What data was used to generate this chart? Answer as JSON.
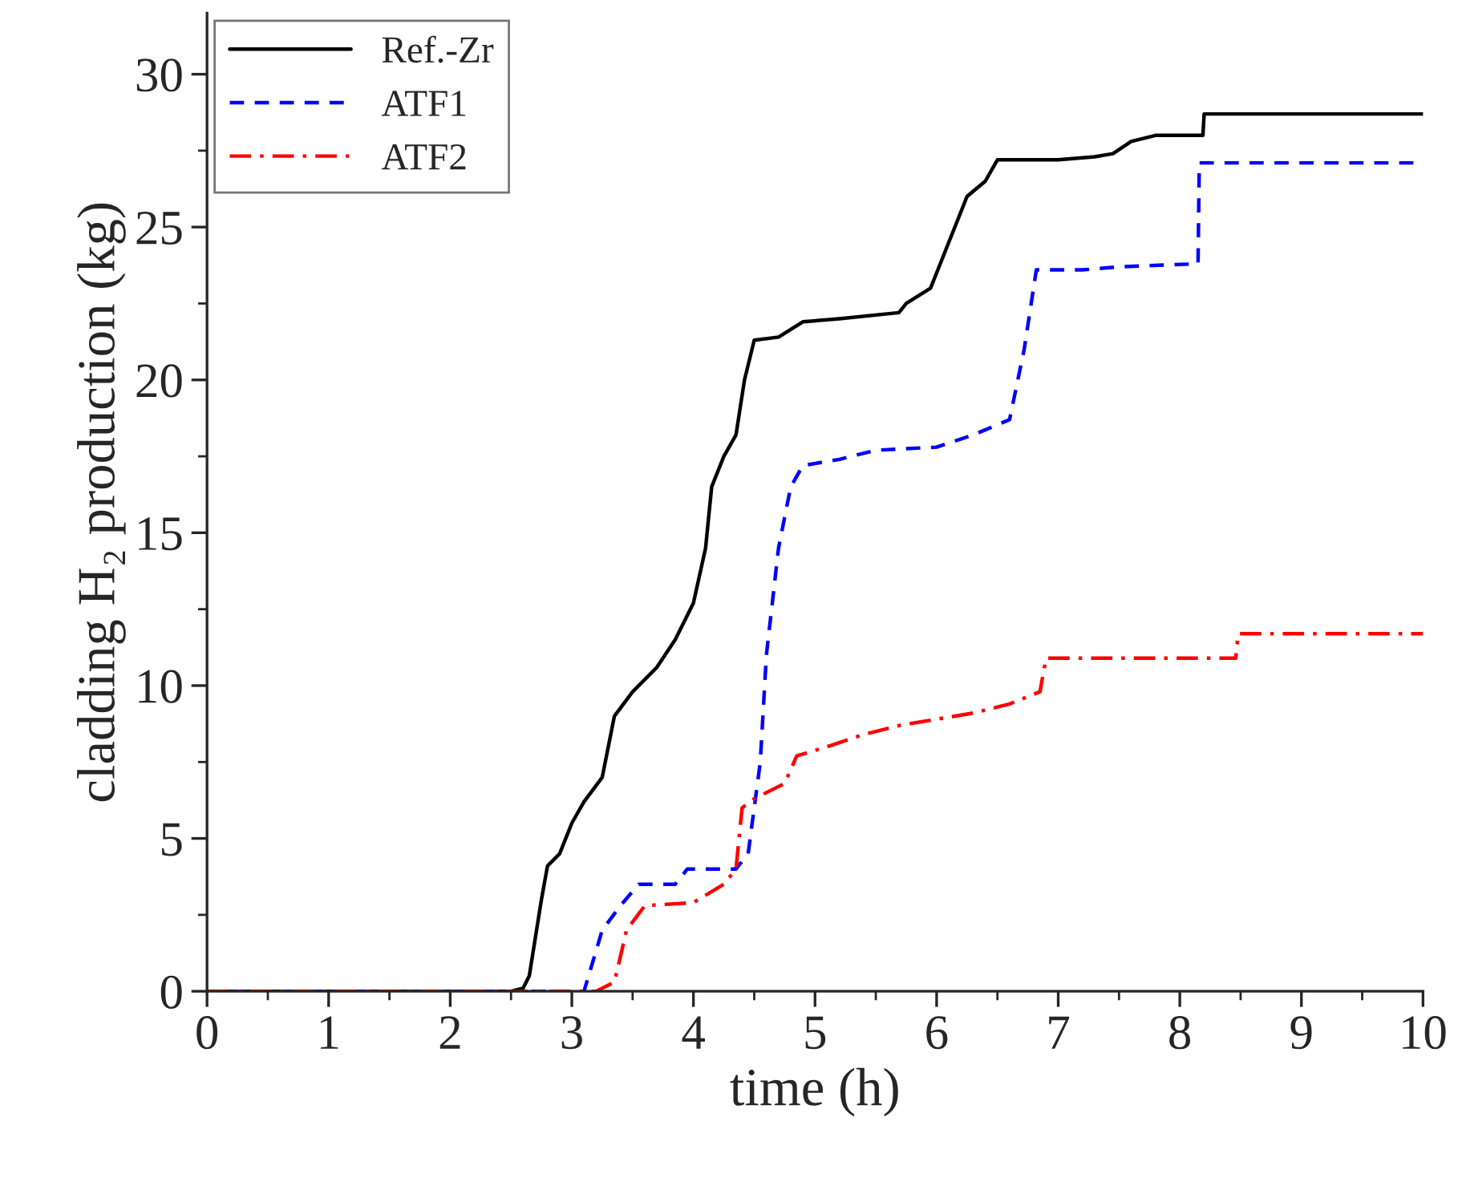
{
  "chart_data": {
    "type": "line",
    "xlabel": "time (h)",
    "ylabel": "cladding H₂ production (kg)",
    "xlim": [
      0,
      10
    ],
    "xticks": [
      0,
      1,
      2,
      3,
      4,
      5,
      6,
      7,
      8,
      9,
      10
    ],
    "ylim": [
      0,
      32
    ],
    "yticks": [
      0,
      5,
      10,
      15,
      20,
      25,
      30
    ],
    "grid": false,
    "legend": "top left",
    "series": [
      {
        "name": "Ref.-Zr",
        "color": "#000000",
        "line_style": "solid",
        "x": [
          0,
          2.5,
          2.6,
          2.65,
          2.75,
          2.8,
          2.9,
          3.0,
          3.1,
          3.25,
          3.3,
          3.35,
          3.5,
          3.7,
          3.85,
          4.0,
          4.1,
          4.15,
          4.25,
          4.35,
          4.42,
          4.5,
          4.7,
          4.9,
          5.2,
          5.69,
          5.75,
          5.95,
          6.1,
          6.25,
          6.4,
          6.5,
          7.0,
          7.3,
          7.45,
          7.6,
          7.8,
          8.19,
          8.2,
          10
        ],
        "values": [
          0,
          0,
          0.1,
          0.5,
          3,
          4.1,
          4.5,
          5.5,
          6.2,
          7,
          8,
          9,
          9.8,
          10.6,
          11.5,
          12.7,
          14.5,
          16.5,
          17.5,
          18.2,
          20,
          21.3,
          21.4,
          21.9,
          22,
          22.2,
          22.5,
          23,
          24.5,
          26,
          26.5,
          27.2,
          27.2,
          27.3,
          27.4,
          27.8,
          28,
          28,
          28.7,
          28.7
        ]
      },
      {
        "name": "ATF1",
        "color": "#0000ff",
        "line_style": "dashed",
        "x": [
          0,
          3.1,
          3.25,
          3.4,
          3.55,
          3.85,
          3.95,
          4.35,
          4.45,
          4.55,
          4.6,
          4.7,
          4.8,
          4.9,
          5.2,
          5.5,
          6.0,
          6.3,
          6.6,
          6.72,
          6.82,
          7.2,
          7.5,
          8.15,
          8.16,
          10
        ],
        "values": [
          0,
          0,
          2,
          2.8,
          3.5,
          3.5,
          4,
          4,
          4.5,
          7.5,
          11,
          14.5,
          16.5,
          17.2,
          17.4,
          17.7,
          17.8,
          18.2,
          18.7,
          21,
          23.6,
          23.6,
          23.7,
          23.8,
          27.1,
          27.1
        ]
      },
      {
        "name": "ATF2",
        "color": "#ff0000",
        "line_style": "dashdot",
        "x": [
          0,
          3.2,
          3.35,
          3.45,
          3.6,
          4.0,
          4.25,
          4.35,
          4.4,
          4.5,
          4.75,
          4.85,
          5.1,
          5.4,
          5.7,
          6.0,
          6.3,
          6.6,
          6.85,
          6.9,
          8.46,
          8.48,
          10
        ],
        "values": [
          0,
          0,
          0.3,
          2,
          2.8,
          2.9,
          3.5,
          4,
          6,
          6.3,
          6.8,
          7.7,
          8,
          8.4,
          8.7,
          8.9,
          9.1,
          9.4,
          9.8,
          10.9,
          10.9,
          11.7,
          11.7
        ]
      }
    ]
  }
}
